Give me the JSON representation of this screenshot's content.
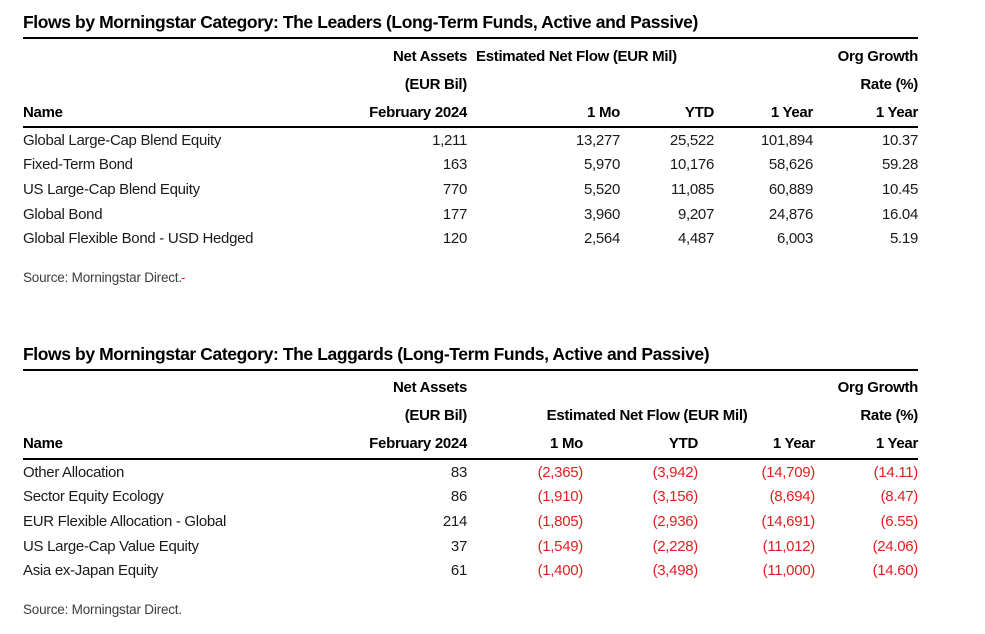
{
  "colors": {
    "negative_red": "#e02020",
    "text": "#1a1a1a",
    "rule": "#000000",
    "source_gray": "#3d3d3d"
  },
  "leaders": {
    "title": "Flows by Morningstar Category: The Leaders (Long-Term Funds, Active and Passive)",
    "header": {
      "net_assets_line1": "Net Assets",
      "net_assets_line2": "(EUR Bil)",
      "net_assets_line3": "February 2024",
      "flow_group": "Estimated Net Flow (EUR Mil)",
      "org_line1": "Org Growth",
      "org_line2": "Rate (%)",
      "name": "Name",
      "col_1mo": "1 Mo",
      "col_ytd": "YTD",
      "col_1year": "1 Year",
      "col_org_1year": "1 Year"
    },
    "rows": [
      {
        "name": "Global Large-Cap Blend Equity",
        "net_assets": "1,211",
        "one_mo": "13,277",
        "ytd": "25,522",
        "one_year": "101,894",
        "org_growth": "10.37"
      },
      {
        "name": "Fixed-Term Bond",
        "net_assets": "163",
        "one_mo": "5,970",
        "ytd": "10,176",
        "one_year": "58,626",
        "org_growth": "59.28"
      },
      {
        "name": "US Large-Cap Blend Equity",
        "net_assets": "770",
        "one_mo": "5,520",
        "ytd": "11,085",
        "one_year": "60,889",
        "org_growth": "10.45"
      },
      {
        "name": "Global Bond",
        "net_assets": "177",
        "one_mo": "3,960",
        "ytd": "9,207",
        "one_year": "24,876",
        "org_growth": "16.04"
      },
      {
        "name": "Global Flexible Bond - USD Hedged",
        "net_assets": "120",
        "one_mo": "2,564",
        "ytd": "4,487",
        "one_year": "6,003",
        "org_growth": "5.19"
      }
    ],
    "source": "Source: Morningstar Direct",
    "source_period": ".",
    "source_red_mark": "-"
  },
  "laggards": {
    "title": "Flows by Morningstar Category: The Laggards (Long-Term Funds, Active and Passive)",
    "header": {
      "net_assets_line1": "Net Assets",
      "net_assets_line2": "(EUR Bil)",
      "net_assets_line3": "February 2024",
      "flow_group": "Estimated Net Flow (EUR Mil)",
      "org_line1": "Org Growth",
      "org_line2": "Rate (%)",
      "name": "Name",
      "col_1mo": "1 Mo",
      "col_ytd": "YTD",
      "col_1year": "1 Year",
      "col_org_1year": "1 Year"
    },
    "rows": [
      {
        "name": "Other Allocation",
        "net_assets": "83",
        "one_mo": "(2,365)",
        "ytd": "(3,942)",
        "one_year": "(14,709)",
        "org_growth": "(14.11)"
      },
      {
        "name": "Sector Equity Ecology",
        "net_assets": "86",
        "one_mo": "(1,910)",
        "ytd": "(3,156)",
        "one_year": "(8,694)",
        "org_growth": "(8.47)"
      },
      {
        "name": "EUR Flexible Allocation - Global",
        "net_assets": "214",
        "one_mo": "(1,805)",
        "ytd": "(2,936)",
        "one_year": "(14,691)",
        "org_growth": "(6.55)"
      },
      {
        "name": "US Large-Cap Value Equity",
        "net_assets": "37",
        "one_mo": "(1,549)",
        "ytd": "(2,228)",
        "one_year": "(11,012)",
        "org_growth": "(24.06)"
      },
      {
        "name": "Asia ex-Japan Equity",
        "net_assets": "61",
        "one_mo": "(1,400)",
        "ytd": "(3,498)",
        "one_year": "(11,000)",
        "org_growth": "(14.60)"
      }
    ],
    "source": "Source: Morningstar Direct."
  }
}
